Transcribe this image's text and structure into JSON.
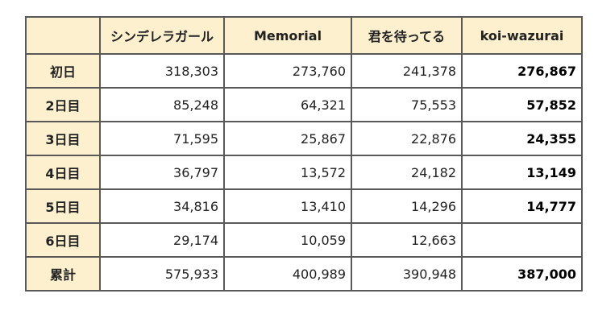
{
  "table": {
    "corner": "",
    "headers": [
      "シンデレラガール",
      "Memorial",
      "君を待ってる",
      "koi-wazurai"
    ],
    "rows": [
      {
        "label": "初日",
        "values": [
          "318,303",
          "273,760",
          "241,378",
          "276,867"
        ]
      },
      {
        "label": "2日目",
        "values": [
          "85,248",
          "64,321",
          "75,553",
          "57,852"
        ]
      },
      {
        "label": "3日目",
        "values": [
          "71,595",
          "25,867",
          "22,876",
          "24,355"
        ]
      },
      {
        "label": "4日目",
        "values": [
          "36,797",
          "13,572",
          "24,182",
          "13,149"
        ]
      },
      {
        "label": "5日目",
        "values": [
          "34,816",
          "13,410",
          "14,296",
          "14,777"
        ]
      },
      {
        "label": "6日目",
        "values": [
          "29,174",
          "10,059",
          "12,663",
          ""
        ]
      },
      {
        "label": "累計",
        "values": [
          "575,933",
          "400,989",
          "390,948",
          "387,000"
        ]
      }
    ],
    "highlight_color": "#fdf0cf",
    "border_color": "#595959"
  }
}
